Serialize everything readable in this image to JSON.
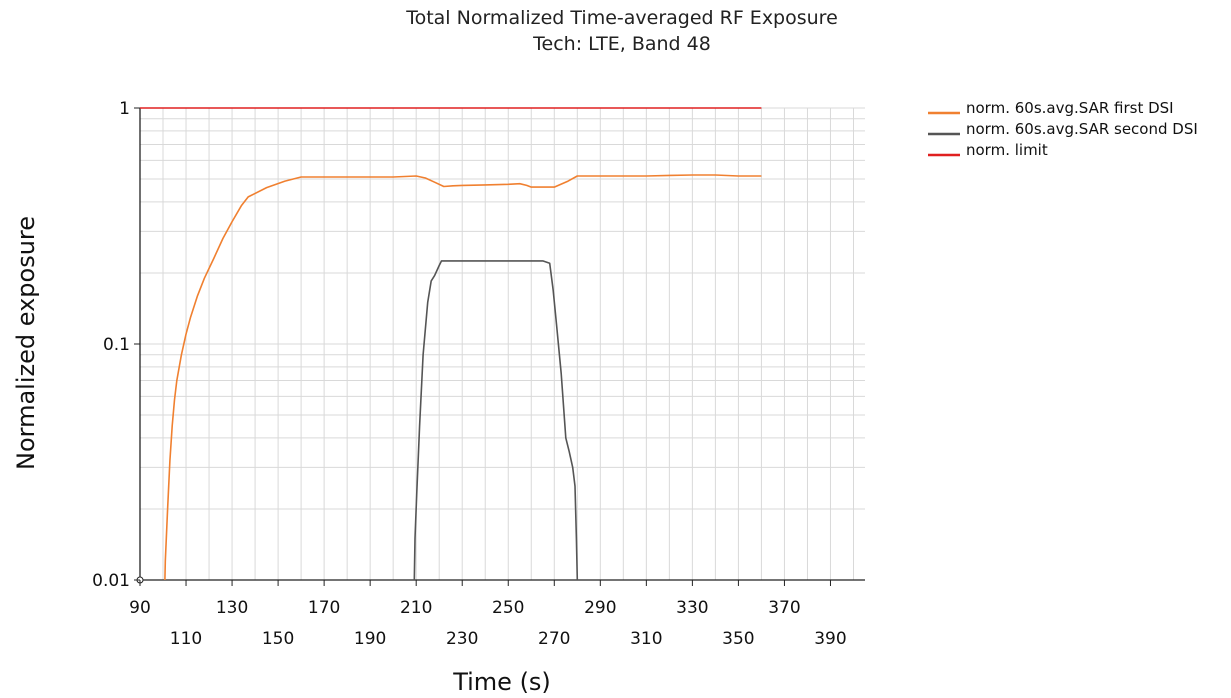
{
  "chart_data": {
    "type": "line",
    "title": "Total Normalized Time-averaged RF Exposure",
    "subtitle": "Tech: LTE, Band 48",
    "xlabel": "Time (s)",
    "ylabel": "Normalized exposure",
    "xlim": [
      90,
      405
    ],
    "ylim": [
      0.01,
      1
    ],
    "yscale": "log",
    "grid": true,
    "legend_position": "top-right",
    "x_ticks_row1": [
      90,
      130,
      170,
      210,
      250,
      290,
      330,
      370
    ],
    "x_ticks_row2": [
      110,
      150,
      190,
      230,
      270,
      310,
      350,
      390
    ],
    "y_ticks": [
      {
        "value": 0.01,
        "label": "0.01"
      },
      {
        "value": 0.1,
        "label": "0.1"
      },
      {
        "value": 1,
        "label": "1"
      }
    ],
    "series": [
      {
        "name": "norm. 60s.avg.SAR first DSI",
        "color": "#f08030",
        "x": [
          100.8,
          101,
          102,
          103,
          104,
          105,
          106,
          108,
          110,
          112,
          115,
          118,
          122,
          126,
          130,
          134,
          137,
          145,
          153,
          160,
          170,
          180,
          190,
          200,
          210,
          214,
          218,
          222,
          226,
          230,
          240,
          250,
          255,
          258,
          260,
          265,
          270,
          276,
          280,
          290,
          300,
          310,
          320,
          330,
          340,
          350,
          360
        ],
        "y": [
          0.01,
          0.012,
          0.02,
          0.032,
          0.045,
          0.058,
          0.07,
          0.09,
          0.11,
          0.13,
          0.16,
          0.19,
          0.23,
          0.28,
          0.33,
          0.385,
          0.42,
          0.46,
          0.49,
          0.51,
          0.51,
          0.51,
          0.51,
          0.51,
          0.515,
          0.505,
          0.485,
          0.465,
          0.468,
          0.47,
          0.472,
          0.475,
          0.478,
          0.47,
          0.462,
          0.462,
          0.462,
          0.49,
          0.515,
          0.515,
          0.515,
          0.515,
          0.518,
          0.52,
          0.52,
          0.515,
          0.515
        ]
      },
      {
        "name": "norm. 60s.avg.SAR second DSI",
        "color": "#555555",
        "x": [
          209.2,
          209.5,
          210.2,
          211.5,
          213,
          215,
          216.5,
          218,
          220,
          221,
          230,
          250,
          265,
          268,
          269.5,
          271,
          273,
          275,
          276.5,
          278,
          279,
          279.6,
          280
        ],
        "y": [
          0.01,
          0.015,
          0.023,
          0.045,
          0.09,
          0.15,
          0.185,
          0.195,
          0.215,
          0.225,
          0.225,
          0.225,
          0.225,
          0.22,
          0.17,
          0.12,
          0.075,
          0.04,
          0.035,
          0.03,
          0.025,
          0.015,
          0.01
        ]
      },
      {
        "name": "norm. limit",
        "color": "#e02020",
        "x": [
          90,
          360
        ],
        "y": [
          1,
          1
        ]
      }
    ]
  }
}
